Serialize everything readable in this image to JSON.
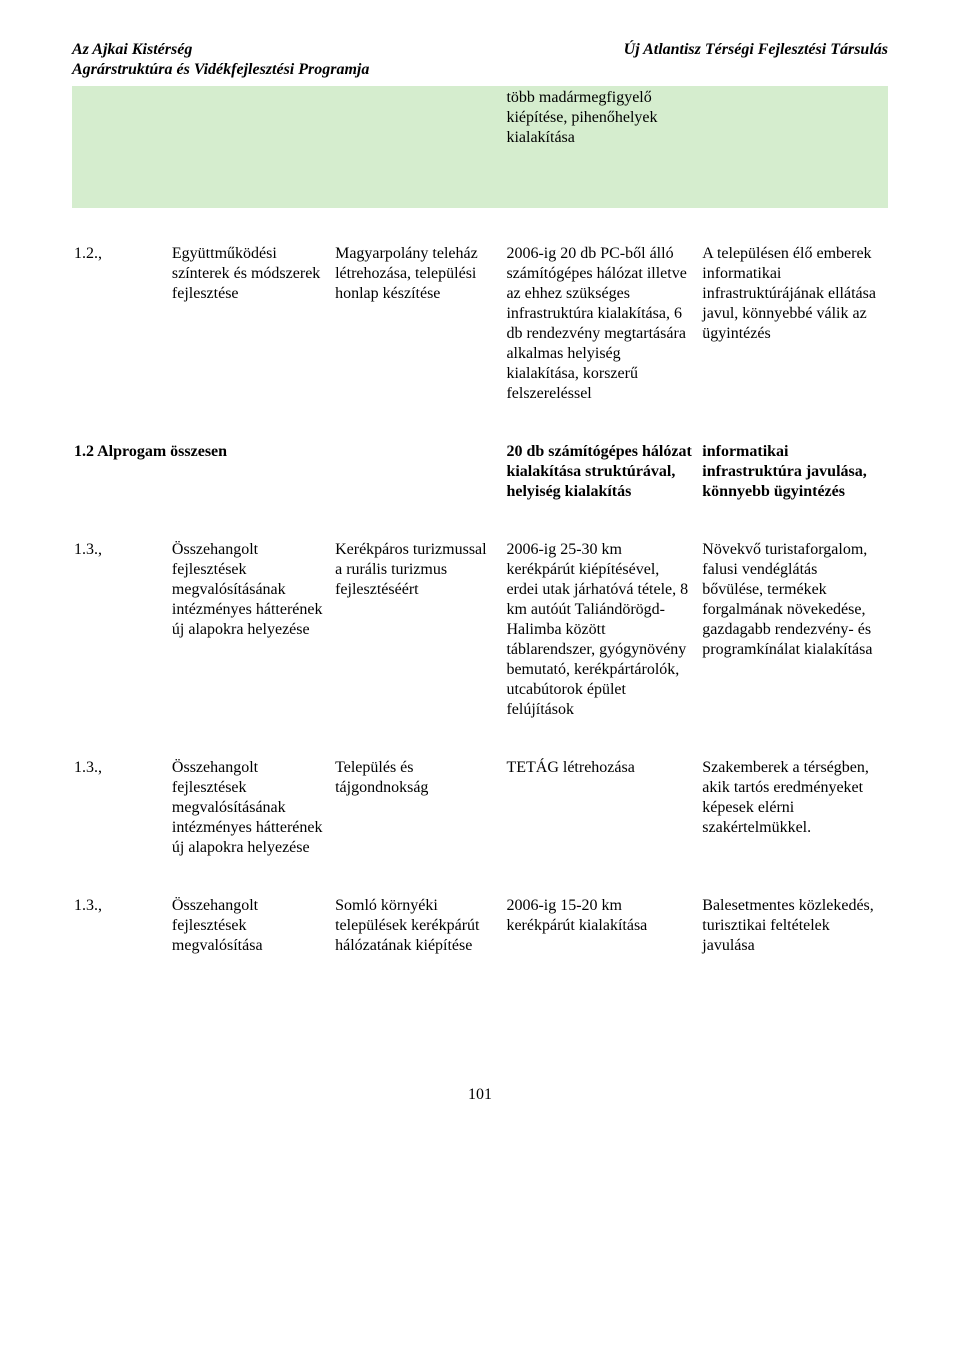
{
  "header": {
    "left_line1": "Az Ajkai Kistérség",
    "left_line2": "Agrárstruktúra és Vidékfejlesztési Programja",
    "right": "Új Atlantisz Térségi Fejlesztési Társulás"
  },
  "colors": {
    "green_row_bg": "#d5edce",
    "page_bg": "#ffffff",
    "text": "#000000"
  },
  "rows": [
    {
      "id": "r0",
      "green": true,
      "bold": false,
      "c1": "",
      "c2": "",
      "c3": "",
      "c4": "több madármegfigyelő kiépítése, pihenőhelyek kialakítása",
      "c5": ""
    },
    {
      "id": "r1",
      "green": false,
      "bold": false,
      "c1": "1.2.,",
      "c2": "Együttműködési színterek és módszerek fejlesztése",
      "c3": "Magyarpolány teleház létrehozása, települési honlap készítése",
      "c4": "2006-ig 20 db PC-ből álló számítógépes hálózat illetve az ehhez szükséges infrastruktúra kialakítása, 6 db rendezvény megtartására alkalmas helyiség kialakítása, korszerű felszereléssel",
      "c5": "A településen élő emberek informatikai infrastruktúrájának ellátása javul, könnyebbé válik az ügyintézés"
    },
    {
      "id": "r2",
      "green": false,
      "bold": true,
      "c1": "1.2 Alprogam összesen",
      "c2": "",
      "c3": "",
      "c4": "20 db számítógépes hálózat kialakítása struktúrával, helyiség kialakítás",
      "c5": "informatikai infrastruktúra javulása, könnyebb ügyintézés"
    },
    {
      "id": "r3",
      "green": false,
      "bold": false,
      "c1": "1.3.,",
      "c2": "Összehangolt fejlesztések megvalósításának intézményes hátterének új alapokra helyezése",
      "c3": "Kerékpáros turizmussal a rurális turizmus fejlesztéséért",
      "c4": "2006-ig 25-30 km kerékpárút kiépítésével, erdei utak járhatóvá tétele, 8 km autóút Taliándörögd-Halimba között táblarendszer, gyógynövény bemutató, kerékpártárolók, utcabútorok épület felújítások",
      "c5": "Növekvő turistaforgalom, falusi vendéglátás bővülése, termékek forgalmának növekedése, gazdagabb rendezvény- és programkínálat kialakítása"
    },
    {
      "id": "r4",
      "green": false,
      "bold": false,
      "c1": "1.3.,",
      "c2": "Összehangolt fejlesztések megvalósításának intézményes hátterének új alapokra helyezése",
      "c3": "Település és tájgondnokság",
      "c4": "TETÁG létrehozása",
      "c5": "Szakemberek a térségben, akik tartós eredményeket képesek elérni szakértelmükkel."
    },
    {
      "id": "r5",
      "green": false,
      "bold": false,
      "c1": "1.3.,",
      "c2": "Összehangolt fejlesztések megvalósítása",
      "c3": "Somló környéki települések kerékpárút hálózatának kiépítése",
      "c4": "2006-ig 15-20 km kerékpárút kialakítása",
      "c5": "Balesetmentes közlekedés, turisztikai feltételek javulása"
    }
  ],
  "page_number": "101"
}
